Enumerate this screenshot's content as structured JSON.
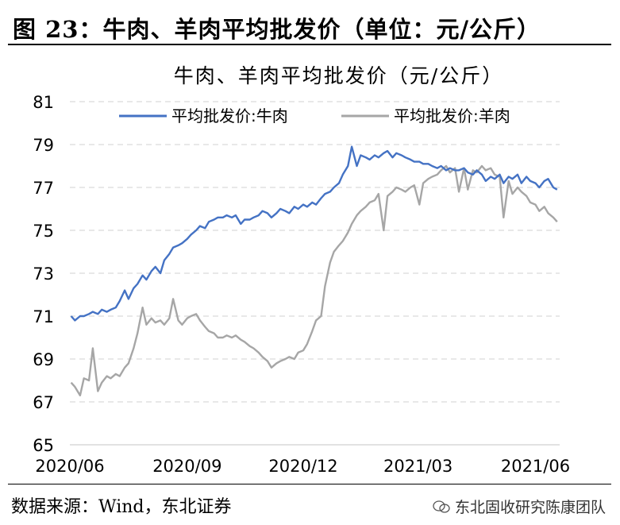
{
  "figure": {
    "title": "图 23：牛肉、羊肉平均批发价（单位：元/公斤）",
    "source": "数据来源：Wind，东北证券",
    "watermark": "东北固收研究陈康团队"
  },
  "chart_data": {
    "type": "line",
    "title": "牛肉、羊肉平均批发价（元/公斤）",
    "xlabel": "",
    "ylabel": "",
    "ylim": [
      65,
      81
    ],
    "yticks": [
      65,
      67,
      69,
      71,
      73,
      75,
      77,
      79,
      81
    ],
    "xlim": [
      "2020-06-01",
      "2021-06-20"
    ],
    "xticks": [
      {
        "date": "2020-06-01",
        "label": "2020/06"
      },
      {
        "date": "2020-09-01",
        "label": "2020/09"
      },
      {
        "date": "2020-12-01",
        "label": "2020/12"
      },
      {
        "date": "2021-03-01",
        "label": "2021/03"
      },
      {
        "date": "2021-06-01",
        "label": "2021/06"
      }
    ],
    "grid": "horizontal-dashed",
    "legend": "top",
    "series": [
      {
        "name": "平均批发价:牛肉",
        "color": "#4472C4",
        "points": [
          [
            "2020-06-02",
            71.0
          ],
          [
            "2020-06-05",
            70.8
          ],
          [
            "2020-06-09",
            71.0
          ],
          [
            "2020-06-12",
            71.0
          ],
          [
            "2020-06-16",
            71.1
          ],
          [
            "2020-06-19",
            71.2
          ],
          [
            "2020-06-23",
            71.1
          ],
          [
            "2020-06-26",
            71.3
          ],
          [
            "2020-06-30",
            71.2
          ],
          [
            "2020-07-03",
            71.3
          ],
          [
            "2020-07-07",
            71.4
          ],
          [
            "2020-07-10",
            71.7
          ],
          [
            "2020-07-14",
            72.2
          ],
          [
            "2020-07-17",
            71.8
          ],
          [
            "2020-07-21",
            72.3
          ],
          [
            "2020-07-24",
            72.5
          ],
          [
            "2020-07-28",
            72.9
          ],
          [
            "2020-07-31",
            72.7
          ],
          [
            "2020-08-04",
            73.1
          ],
          [
            "2020-08-07",
            73.3
          ],
          [
            "2020-08-11",
            73.0
          ],
          [
            "2020-08-14",
            73.6
          ],
          [
            "2020-08-18",
            73.9
          ],
          [
            "2020-08-21",
            74.2
          ],
          [
            "2020-08-25",
            74.3
          ],
          [
            "2020-08-28",
            74.4
          ],
          [
            "2020-09-01",
            74.6
          ],
          [
            "2020-09-04",
            74.8
          ],
          [
            "2020-09-08",
            75.0
          ],
          [
            "2020-09-11",
            75.2
          ],
          [
            "2020-09-15",
            75.1
          ],
          [
            "2020-09-18",
            75.4
          ],
          [
            "2020-09-22",
            75.5
          ],
          [
            "2020-09-25",
            75.6
          ],
          [
            "2020-09-29",
            75.6
          ],
          [
            "2020-10-02",
            75.7
          ],
          [
            "2020-10-06",
            75.6
          ],
          [
            "2020-10-09",
            75.7
          ],
          [
            "2020-10-13",
            75.3
          ],
          [
            "2020-10-16",
            75.5
          ],
          [
            "2020-10-20",
            75.5
          ],
          [
            "2020-10-23",
            75.6
          ],
          [
            "2020-10-27",
            75.7
          ],
          [
            "2020-10-30",
            75.9
          ],
          [
            "2020-11-03",
            75.8
          ],
          [
            "2020-11-06",
            75.6
          ],
          [
            "2020-11-10",
            75.8
          ],
          [
            "2020-11-13",
            76.0
          ],
          [
            "2020-11-17",
            75.9
          ],
          [
            "2020-11-20",
            75.8
          ],
          [
            "2020-11-24",
            76.1
          ],
          [
            "2020-11-27",
            76.0
          ],
          [
            "2020-12-01",
            76.2
          ],
          [
            "2020-12-04",
            76.1
          ],
          [
            "2020-12-08",
            76.3
          ],
          [
            "2020-12-11",
            76.2
          ],
          [
            "2020-12-15",
            76.5
          ],
          [
            "2020-12-18",
            76.7
          ],
          [
            "2020-12-22",
            76.8
          ],
          [
            "2020-12-25",
            77.0
          ],
          [
            "2020-12-29",
            77.2
          ],
          [
            "2021-01-01",
            77.6
          ],
          [
            "2021-01-05",
            78.0
          ],
          [
            "2021-01-08",
            78.9
          ],
          [
            "2021-01-12",
            78.0
          ],
          [
            "2021-01-15",
            78.5
          ],
          [
            "2021-01-19",
            78.4
          ],
          [
            "2021-01-22",
            78.3
          ],
          [
            "2021-01-26",
            78.5
          ],
          [
            "2021-01-29",
            78.4
          ],
          [
            "2021-02-02",
            78.6
          ],
          [
            "2021-02-05",
            78.7
          ],
          [
            "2021-02-09",
            78.4
          ],
          [
            "2021-02-12",
            78.6
          ],
          [
            "2021-02-16",
            78.5
          ],
          [
            "2021-02-19",
            78.4
          ],
          [
            "2021-02-23",
            78.3
          ],
          [
            "2021-02-26",
            78.2
          ],
          [
            "2021-03-02",
            78.2
          ],
          [
            "2021-03-05",
            78.1
          ],
          [
            "2021-03-09",
            78.1
          ],
          [
            "2021-03-12",
            78.0
          ],
          [
            "2021-03-16",
            77.9
          ],
          [
            "2021-03-19",
            78.0
          ],
          [
            "2021-03-23",
            77.8
          ],
          [
            "2021-03-26",
            77.9
          ],
          [
            "2021-03-30",
            77.8
          ],
          [
            "2021-04-02",
            77.8
          ],
          [
            "2021-04-06",
            77.9
          ],
          [
            "2021-04-09",
            77.7
          ],
          [
            "2021-04-13",
            77.6
          ],
          [
            "2021-04-16",
            77.8
          ],
          [
            "2021-04-20",
            77.6
          ],
          [
            "2021-04-23",
            77.3
          ],
          [
            "2021-04-27",
            77.5
          ],
          [
            "2021-04-30",
            77.4
          ],
          [
            "2021-05-04",
            77.6
          ],
          [
            "2021-05-07",
            77.2
          ],
          [
            "2021-05-11",
            77.5
          ],
          [
            "2021-05-14",
            77.4
          ],
          [
            "2021-05-18",
            77.6
          ],
          [
            "2021-05-21",
            77.2
          ],
          [
            "2021-05-25",
            77.5
          ],
          [
            "2021-05-28",
            77.3
          ],
          [
            "2021-06-01",
            77.2
          ],
          [
            "2021-06-04",
            77.0
          ],
          [
            "2021-06-08",
            77.3
          ],
          [
            "2021-06-11",
            77.4
          ],
          [
            "2021-06-15",
            77.0
          ],
          [
            "2021-06-18",
            76.9
          ]
        ]
      },
      {
        "name": "平均批发价:羊肉",
        "color": "#A6A6A6",
        "points": [
          [
            "2020-06-02",
            67.9
          ],
          [
            "2020-06-05",
            67.7
          ],
          [
            "2020-06-09",
            67.3
          ],
          [
            "2020-06-12",
            68.1
          ],
          [
            "2020-06-16",
            68.0
          ],
          [
            "2020-06-19",
            69.5
          ],
          [
            "2020-06-23",
            67.5
          ],
          [
            "2020-06-26",
            67.9
          ],
          [
            "2020-06-30",
            68.2
          ],
          [
            "2020-07-03",
            68.1
          ],
          [
            "2020-07-07",
            68.3
          ],
          [
            "2020-07-10",
            68.2
          ],
          [
            "2020-07-14",
            68.6
          ],
          [
            "2020-07-17",
            68.8
          ],
          [
            "2020-07-21",
            69.5
          ],
          [
            "2020-07-24",
            70.2
          ],
          [
            "2020-07-28",
            71.4
          ],
          [
            "2020-07-31",
            70.6
          ],
          [
            "2020-08-04",
            70.9
          ],
          [
            "2020-08-07",
            70.7
          ],
          [
            "2020-08-11",
            70.8
          ],
          [
            "2020-08-14",
            70.6
          ],
          [
            "2020-08-18",
            70.9
          ],
          [
            "2020-08-21",
            71.8
          ],
          [
            "2020-08-25",
            70.8
          ],
          [
            "2020-08-28",
            70.6
          ],
          [
            "2020-09-01",
            70.9
          ],
          [
            "2020-09-04",
            71.0
          ],
          [
            "2020-09-08",
            71.1
          ],
          [
            "2020-09-11",
            70.8
          ],
          [
            "2020-09-15",
            70.5
          ],
          [
            "2020-09-18",
            70.3
          ],
          [
            "2020-09-22",
            70.2
          ],
          [
            "2020-09-25",
            70.0
          ],
          [
            "2020-09-29",
            70.0
          ],
          [
            "2020-10-02",
            70.1
          ],
          [
            "2020-10-06",
            70.0
          ],
          [
            "2020-10-09",
            70.1
          ],
          [
            "2020-10-13",
            69.9
          ],
          [
            "2020-10-16",
            69.8
          ],
          [
            "2020-10-20",
            69.6
          ],
          [
            "2020-10-23",
            69.5
          ],
          [
            "2020-10-27",
            69.3
          ],
          [
            "2020-10-30",
            69.1
          ],
          [
            "2020-11-03",
            68.9
          ],
          [
            "2020-11-06",
            68.6
          ],
          [
            "2020-11-10",
            68.8
          ],
          [
            "2020-11-13",
            68.9
          ],
          [
            "2020-11-17",
            69.0
          ],
          [
            "2020-11-20",
            69.1
          ],
          [
            "2020-11-24",
            69.0
          ],
          [
            "2020-11-27",
            69.3
          ],
          [
            "2020-12-01",
            69.4
          ],
          [
            "2020-12-04",
            69.7
          ],
          [
            "2020-12-08",
            70.3
          ],
          [
            "2020-12-11",
            70.8
          ],
          [
            "2020-12-15",
            71.0
          ],
          [
            "2020-12-18",
            72.4
          ],
          [
            "2020-12-22",
            73.5
          ],
          [
            "2020-12-25",
            74.0
          ],
          [
            "2020-12-29",
            74.3
          ],
          [
            "2021-01-01",
            74.5
          ],
          [
            "2021-01-05",
            74.9
          ],
          [
            "2021-01-08",
            75.3
          ],
          [
            "2021-01-12",
            75.7
          ],
          [
            "2021-01-15",
            75.9
          ],
          [
            "2021-01-19",
            76.1
          ],
          [
            "2021-01-22",
            76.3
          ],
          [
            "2021-01-26",
            76.4
          ],
          [
            "2021-01-29",
            76.7
          ],
          [
            "2021-02-02",
            75.0
          ],
          [
            "2021-02-05",
            76.6
          ],
          [
            "2021-02-09",
            76.8
          ],
          [
            "2021-02-12",
            77.0
          ],
          [
            "2021-02-16",
            76.9
          ],
          [
            "2021-02-19",
            76.8
          ],
          [
            "2021-02-23",
            77.0
          ],
          [
            "2021-02-26",
            77.1
          ],
          [
            "2021-03-02",
            76.2
          ],
          [
            "2021-03-05",
            77.2
          ],
          [
            "2021-03-09",
            77.4
          ],
          [
            "2021-03-12",
            77.5
          ],
          [
            "2021-03-16",
            77.6
          ],
          [
            "2021-03-19",
            77.8
          ],
          [
            "2021-03-23",
            78.0
          ],
          [
            "2021-03-26",
            77.7
          ],
          [
            "2021-03-30",
            77.9
          ],
          [
            "2021-04-02",
            76.8
          ],
          [
            "2021-04-06",
            77.9
          ],
          [
            "2021-04-09",
            76.9
          ],
          [
            "2021-04-13",
            77.8
          ],
          [
            "2021-04-16",
            77.7
          ],
          [
            "2021-04-20",
            78.0
          ],
          [
            "2021-04-23",
            77.8
          ],
          [
            "2021-04-27",
            77.9
          ],
          [
            "2021-04-30",
            77.6
          ],
          [
            "2021-05-04",
            77.5
          ],
          [
            "2021-05-07",
            75.6
          ],
          [
            "2021-05-11",
            77.3
          ],
          [
            "2021-05-14",
            76.7
          ],
          [
            "2021-05-18",
            77.0
          ],
          [
            "2021-05-21",
            76.8
          ],
          [
            "2021-05-25",
            76.6
          ],
          [
            "2021-05-28",
            76.3
          ],
          [
            "2021-06-01",
            76.2
          ],
          [
            "2021-06-04",
            75.9
          ],
          [
            "2021-06-08",
            76.1
          ],
          [
            "2021-06-11",
            75.8
          ],
          [
            "2021-06-15",
            75.6
          ],
          [
            "2021-06-18",
            75.4
          ]
        ]
      }
    ]
  }
}
